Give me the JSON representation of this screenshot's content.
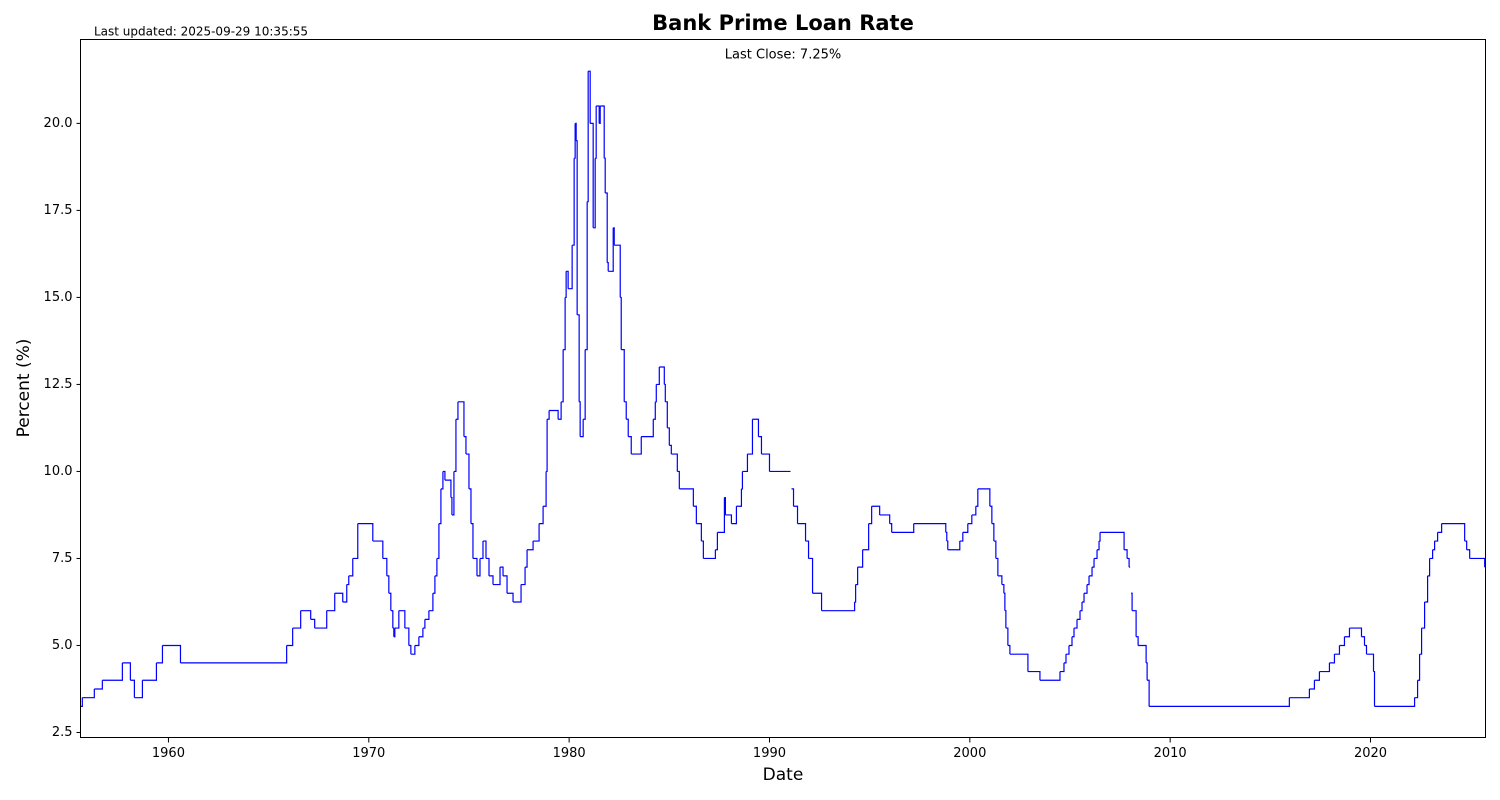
{
  "chart_data": {
    "type": "step",
    "title": "Bank Prime Loan Rate",
    "subtitle": "Last updated: 2025-09-29 10:35:55",
    "annotation": "Last Close: 7.25%",
    "xlabel": "Date",
    "ylabel": "Percent (%)",
    "color": "#0000ff",
    "xlim": [
      1955.61,
      2025.74
    ],
    "xticks": [
      1960,
      1970,
      1980,
      1990,
      2000,
      2010,
      2020
    ],
    "ylim": [
      2.356,
      22.41
    ],
    "yticks": [
      2.5,
      {
        "value": 5,
        "label": "5.0"
      },
      7.5,
      {
        "value": 10,
        "label": "10.0"
      },
      12.5,
      {
        "value": 15,
        "label": "15.0"
      },
      17.5,
      {
        "value": 20,
        "label": "20.0"
      }
    ],
    "x": [
      1955.61,
      1955.7,
      1956.3,
      1956.7,
      1957.7,
      1958.1,
      1958.3,
      1958.7,
      1959.4,
      1959.7,
      1960.6,
      1965.9,
      1966.2,
      1966.6,
      1967.1,
      1967.3,
      1967.9,
      1968.3,
      1968.7,
      1968.9,
      1969.0,
      1969.2,
      1969.45,
      1970.2,
      1970.7,
      1970.9,
      1971.0,
      1971.1,
      1971.2,
      1971.25,
      1971.3,
      1971.5,
      1971.8,
      1972.0,
      1972.1,
      1972.3,
      1972.5,
      1972.7,
      1972.8,
      1973.0,
      1973.2,
      1973.3,
      1973.4,
      1973.5,
      1973.6,
      1973.7,
      1973.8,
      1974.1,
      1974.15,
      1974.25,
      1974.35,
      1974.45,
      1974.75,
      1974.85,
      1975.0,
      1975.1,
      1975.2,
      1975.4,
      1975.55,
      1975.7,
      1975.85,
      1976.0,
      1976.2,
      1976.55,
      1976.7,
      1976.9,
      1977.2,
      1977.6,
      1977.8,
      1977.9,
      1978.2,
      1978.5,
      1978.7,
      1978.85,
      1978.9,
      1979.0,
      1979.45,
      1979.6,
      1979.7,
      1979.8,
      1979.85,
      1979.95,
      1980.15,
      1980.25,
      1980.3,
      1980.35,
      1980.4,
      1980.5,
      1980.55,
      1980.7,
      1980.8,
      1980.9,
      1980.95,
      1981.05,
      1981.2,
      1981.3,
      1981.35,
      1981.5,
      1981.55,
      1981.75,
      1981.8,
      1981.9,
      1981.95,
      1982.2,
      1982.25,
      1982.55,
      1982.6,
      1982.75,
      1982.85,
      1982.95,
      1983.1,
      1983.6,
      1984.2,
      1984.3,
      1984.35,
      1984.5,
      1984.75,
      1984.8,
      1984.9,
      1985.0,
      1985.1,
      1985.4,
      1985.5,
      1986.2,
      1986.35,
      1986.6,
      1986.7,
      1987.3,
      1987.4,
      1987.75,
      1987.8,
      1988.1,
      1988.35,
      1988.6,
      1988.65,
      1988.9,
      1989.15,
      1989.45,
      1989.6,
      1990.0,
      1991.05,
      1991.1,
      1991.2,
      1991.4,
      1991.8,
      1991.95,
      1992.15,
      1992.6,
      1994.25,
      1994.3,
      1994.4,
      1994.65,
      1994.95,
      1995.1,
      1995.5,
      1996.0,
      1996.1,
      1997.2,
      1998.8,
      1998.85,
      1998.9,
      1999.5,
      1999.65,
      1999.9,
      2000.1,
      2000.3,
      2000.4,
      2001.0,
      2001.1,
      2001.2,
      2001.3,
      2001.4,
      2001.6,
      2001.7,
      2001.75,
      2001.8,
      2001.9,
      2002.0,
      2002.9,
      2003.5,
      2004.5,
      2004.7,
      2004.8,
      2004.95,
      2005.1,
      2005.2,
      2005.35,
      2005.5,
      2005.6,
      2005.7,
      2005.85,
      2005.95,
      2006.1,
      2006.2,
      2006.35,
      2006.45,
      2006.5,
      2007.7,
      2007.85,
      2007.95,
      2008.0,
      2008.05,
      2008.1,
      2008.3,
      2008.4,
      2008.8,
      2008.85,
      2008.95,
      2015.95,
      2016.95,
      2017.2,
      2017.45,
      2017.95,
      2018.2,
      2018.45,
      2018.7,
      2018.95,
      2019.55,
      2019.7,
      2019.8,
      2020.15,
      2020.2,
      2022.2,
      2022.35,
      2022.45,
      2022.55,
      2022.7,
      2022.85,
      2022.95,
      2023.1,
      2023.2,
      2023.35,
      2023.55,
      2024.7,
      2024.8,
      2024.95,
      2025.7,
      2025.74
    ],
    "values": [
      3.25,
      3.5,
      3.75,
      4,
      4.5,
      4,
      3.5,
      4,
      4.5,
      5,
      4.5,
      5,
      5.5,
      6,
      5.75,
      5.5,
      6,
      6.5,
      6.25,
      6.75,
      7,
      7.5,
      8.5,
      8,
      7.5,
      7,
      6.5,
      6,
      5.5,
      5.25,
      5.5,
      6,
      5.5,
      5,
      4.75,
      5,
      5.25,
      5.5,
      5.75,
      6,
      6.5,
      7,
      7.5,
      8.5,
      9.5,
      10,
      9.75,
      9.25,
      8.75,
      10,
      11.5,
      12,
      11,
      10.5,
      9.5,
      8.5,
      7.5,
      7,
      7.5,
      8,
      7.5,
      7,
      6.75,
      7.25,
      7,
      6.5,
      6.25,
      6.75,
      7.25,
      7.75,
      8,
      8.5,
      9,
      10,
      11.5,
      11.75,
      11.5,
      12,
      13.5,
      15,
      15.75,
      15.25,
      16.5,
      19,
      20,
      19.5,
      14.5,
      12,
      11,
      11.5,
      13.5,
      17.75,
      21.5,
      20,
      17,
      19,
      20.5,
      20,
      20.5,
      19,
      18,
      16,
      15.75,
      17,
      16.5,
      15,
      13.5,
      12,
      11.5,
      11,
      10.5,
      11,
      11.5,
      12,
      12.5,
      13,
      12.5,
      12,
      11.25,
      10.75,
      10.5,
      10,
      9.5,
      9,
      8.5,
      8,
      7.5,
      7.75,
      8.25,
      9.25,
      8.75,
      8.5,
      9,
      9.5,
      10,
      10.5,
      11.5,
      11,
      10.5,
      10,
      null,
      9.5,
      9,
      8.5,
      8,
      7.5,
      6.5,
      6,
      6.25,
      6.75,
      7.25,
      7.75,
      8.5,
      9,
      8.75,
      8.5,
      8.25,
      8.5,
      8.25,
      8,
      7.75,
      8,
      8.25,
      8.5,
      8.75,
      9,
      9.5,
      9,
      8.5,
      8,
      7.5,
      7,
      6.75,
      6.5,
      6,
      5.5,
      5,
      4.75,
      4.25,
      4,
      4.25,
      4.5,
      4.75,
      5,
      5.25,
      5.5,
      5.75,
      6,
      6.25,
      6.5,
      6.75,
      7,
      7.25,
      7.5,
      7.75,
      8,
      8.25,
      7.75,
      7.5,
      7.25,
      null,
      6.5,
      6,
      5.25,
      5,
      4.5,
      4,
      3.25,
      3.5,
      3.75,
      4,
      4.25,
      4.5,
      4.75,
      5,
      5.25,
      5.5,
      5.25,
      5,
      4.75,
      4.25,
      3.25,
      3.5,
      4,
      4.75,
      5.5,
      6.25,
      7,
      7.5,
      7.75,
      8,
      8.25,
      8.5,
      8,
      7.75,
      7.5,
      7.25,
      7.25
    ]
  }
}
